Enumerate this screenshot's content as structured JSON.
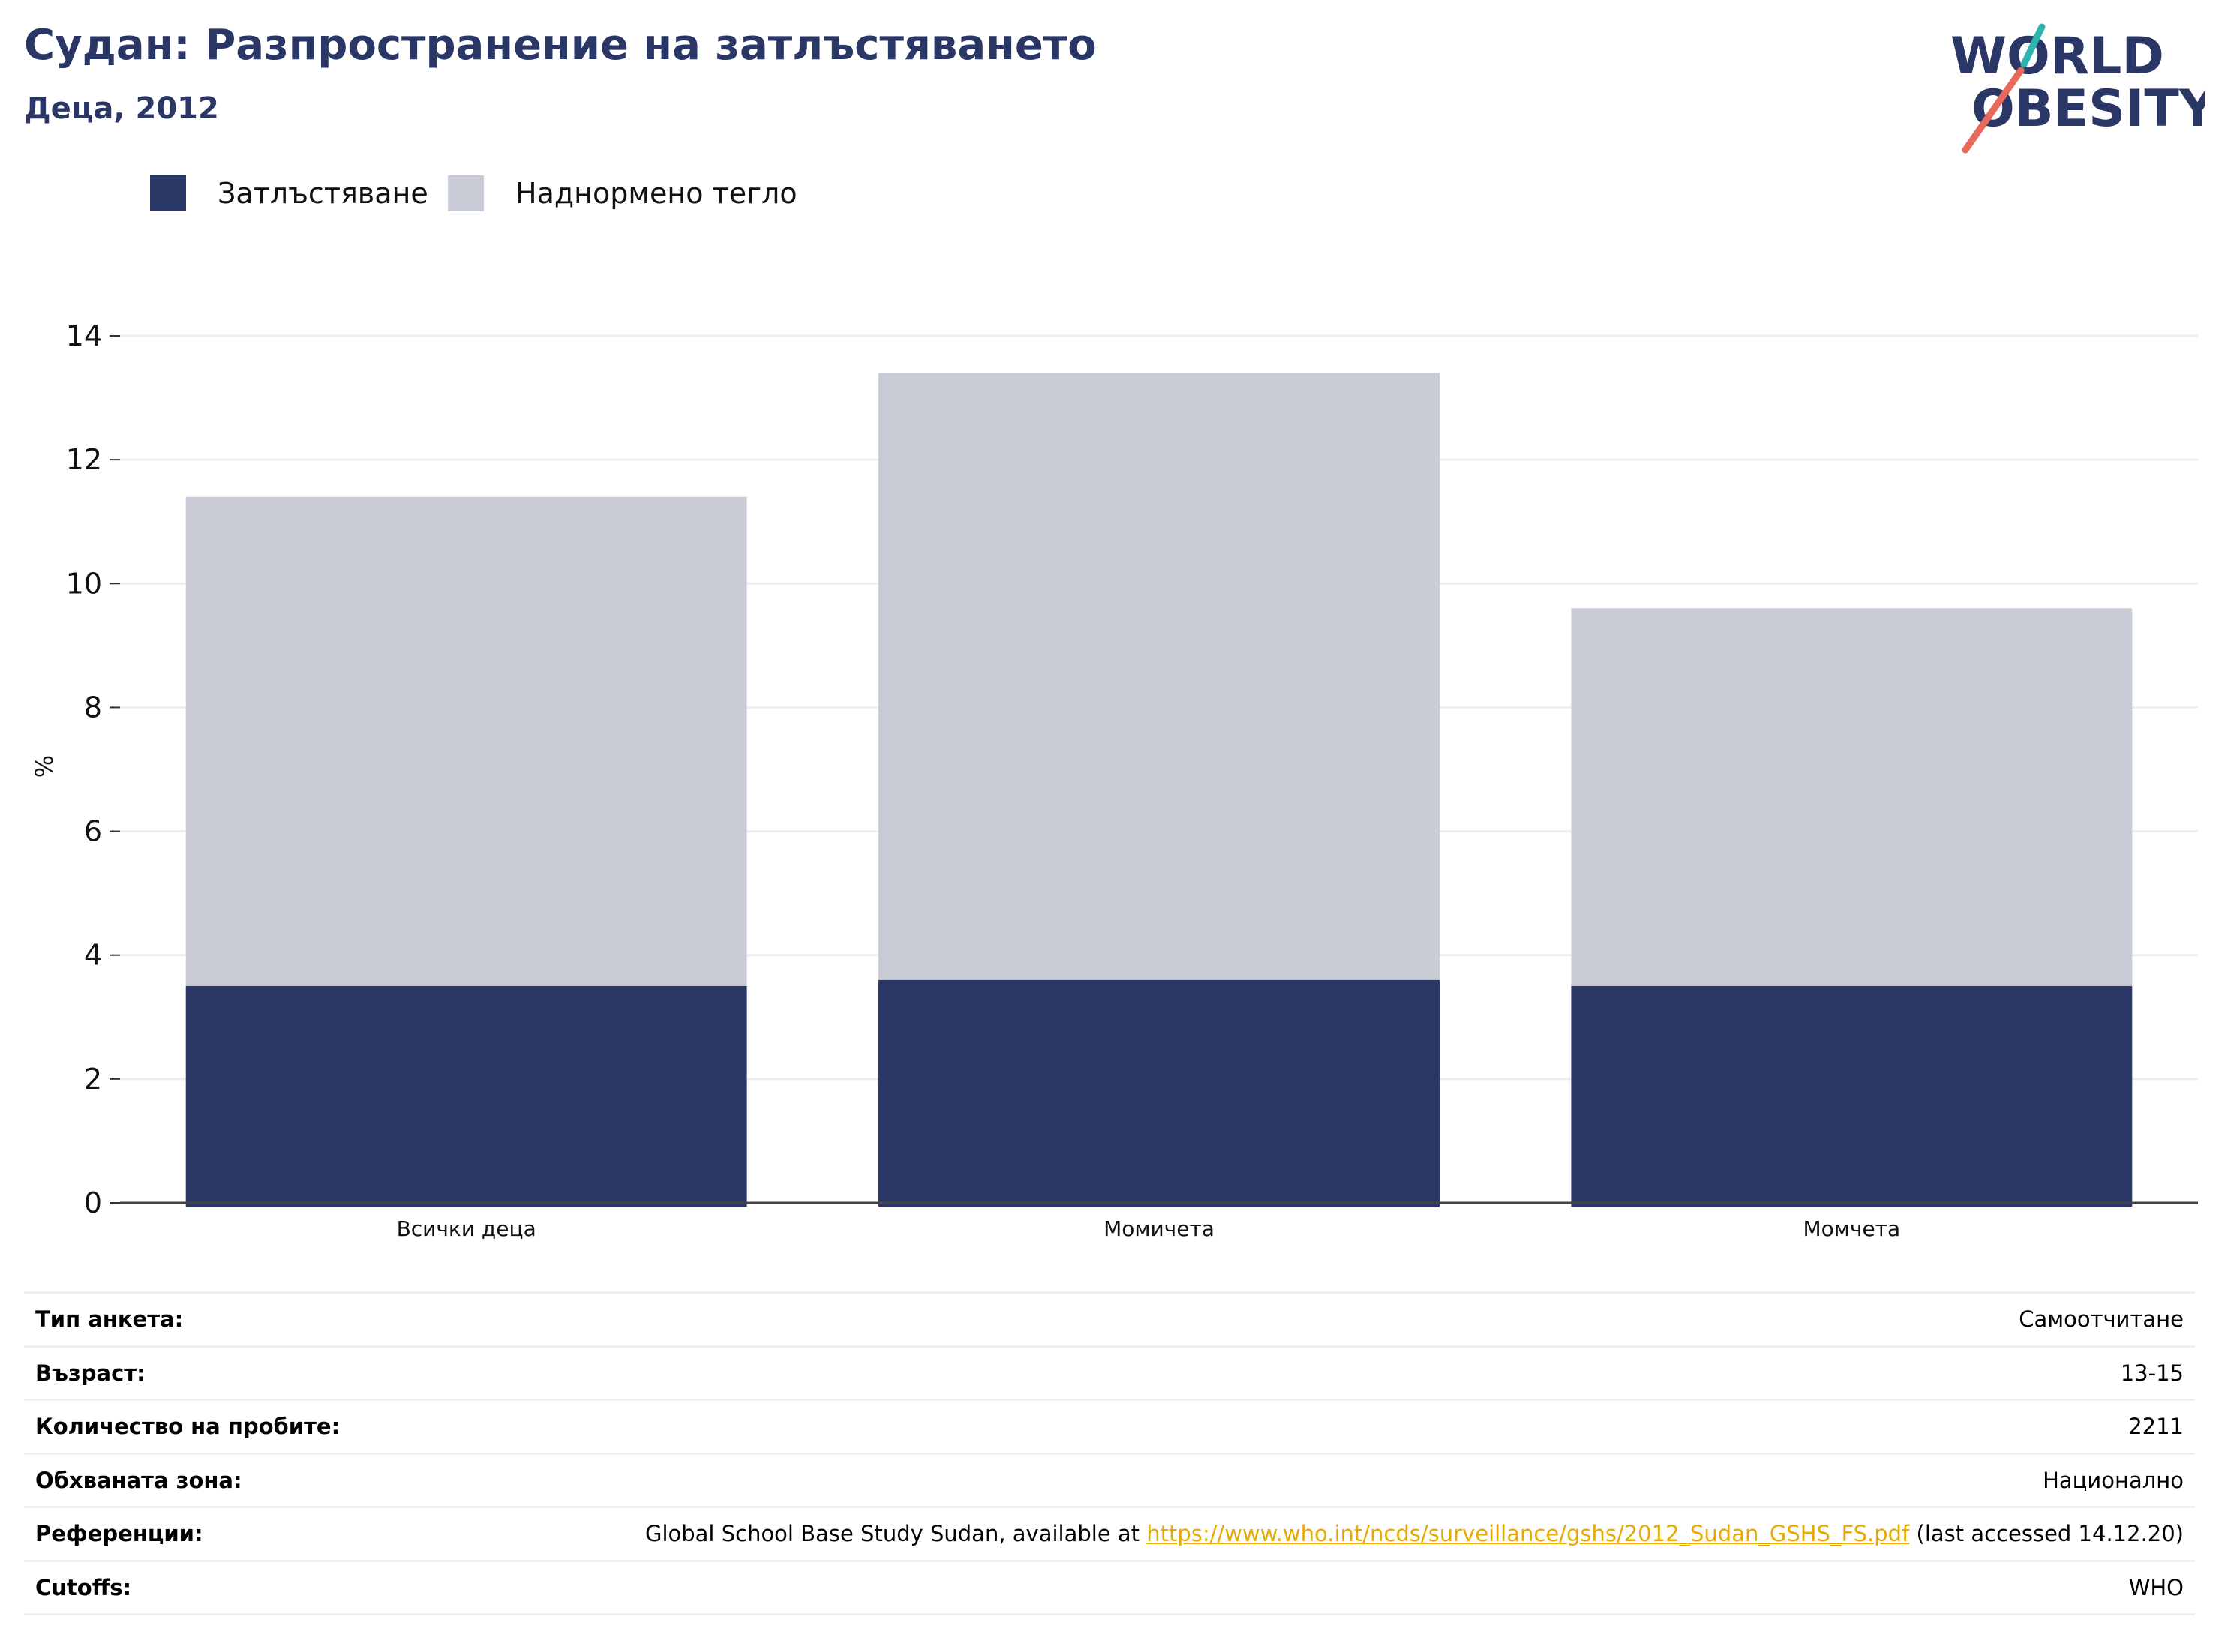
{
  "header": {
    "title": "Судан: Разпространение на затлъстяването",
    "subtitle": "Деца, 2012"
  },
  "logo": {
    "line1": "WORLD",
    "line2": "OBESITY"
  },
  "legend": [
    {
      "label": "Затлъстяване",
      "color": "#2a3766"
    },
    {
      "label": "Наднормено тегло",
      "color": "#c9cbd7"
    }
  ],
  "chart_data": {
    "type": "bar",
    "stacked": true,
    "categories": [
      "Всички деца",
      "Момичета",
      "Момчета"
    ],
    "series": [
      {
        "name": "Затлъстяване",
        "color": "#2a3766",
        "values": [
          3.5,
          3.6,
          3.5
        ]
      },
      {
        "name": "Наднормено тегло",
        "color": "#c9cbd7",
        "values": [
          7.9,
          9.8,
          6.1
        ]
      }
    ],
    "ylabel": "%",
    "ylim": [
      0,
      14
    ],
    "yticks": [
      0,
      2,
      4,
      6,
      8,
      10,
      12,
      14
    ],
    "grid": true,
    "legend_position": "top-left"
  },
  "info": {
    "rows": [
      {
        "label": "Тип анкета:",
        "value": "Самоотчитане"
      },
      {
        "label": "Възраст:",
        "value": "13-15"
      },
      {
        "label": "Количество на пробите:",
        "value": "2211"
      },
      {
        "label": "Обхваната зона:",
        "value": "Национално"
      },
      {
        "label": "Референции:",
        "value_prefix": "Global School Base Study Sudan, available at ",
        "link": "https://www.who.int/ncds/surveillance/gshs/2012_Sudan_GSHS_FS.pdf",
        "value_suffix": " (last accessed 14.12.20)"
      },
      {
        "label": "Cutoffs:",
        "value": "WHO"
      }
    ]
  }
}
